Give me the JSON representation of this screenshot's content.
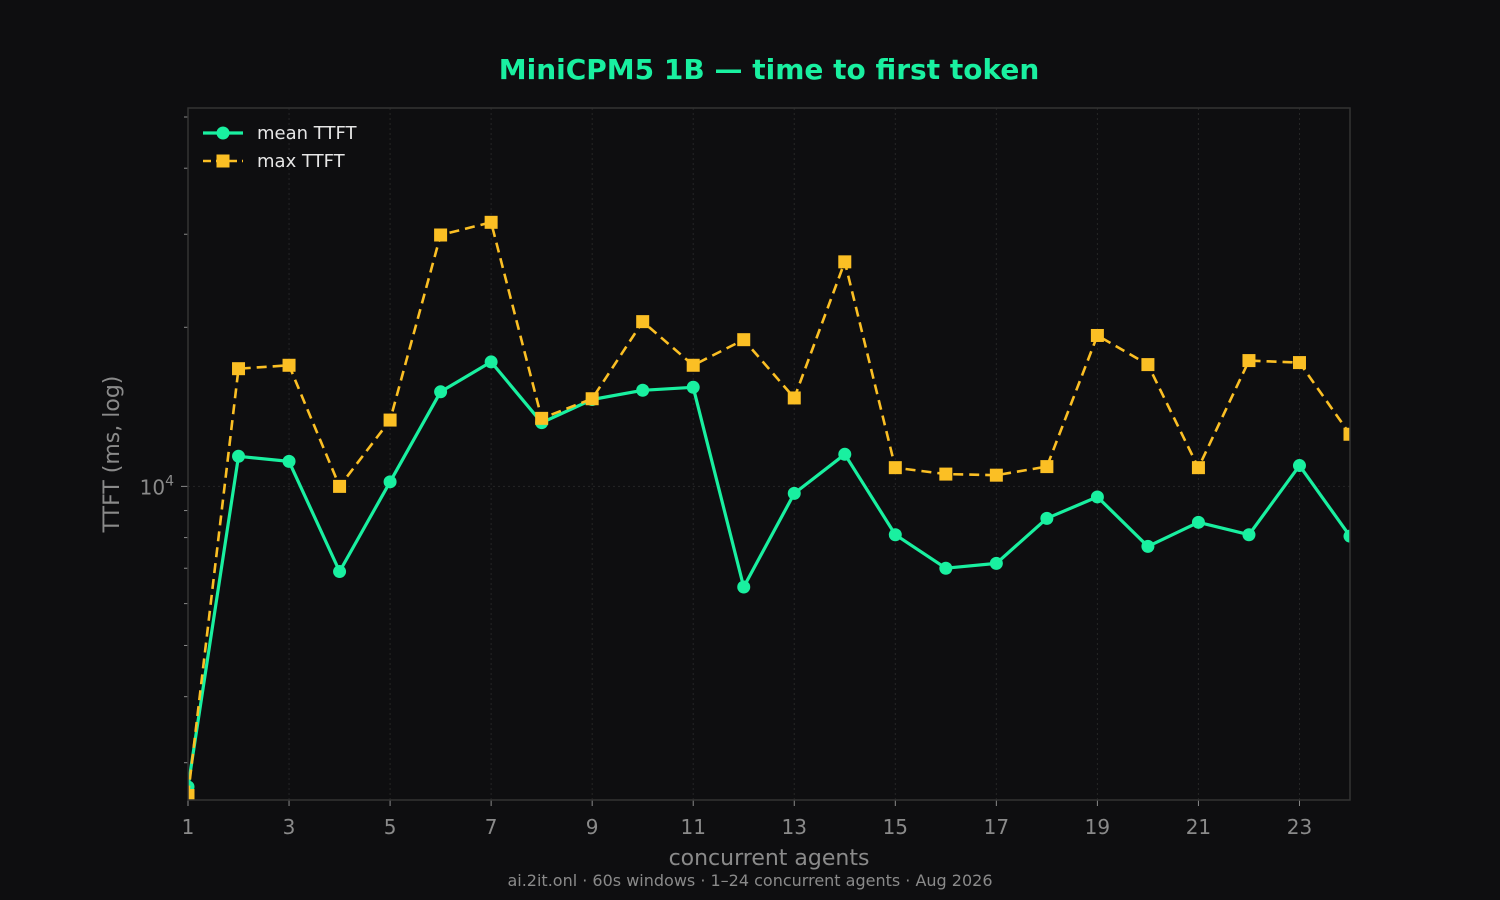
{
  "colors": {
    "background": "#0e0e10",
    "title": "#19f0a0",
    "mean": "#19f0a0",
    "max": "#fbbf24",
    "frame": "#333333",
    "grid": "#262626",
    "text": "#8a8a8a",
    "legend_text": "#e6e6e6"
  },
  "footer": "ai.2it.onl · 60s windows · 1–24 concurrent agents · Aug 2026",
  "chart_data": {
    "type": "line",
    "title": "MiniCPM5 1B — time to first token",
    "xlabel": "concurrent agents",
    "ylabel": "TTFT (ms, log)",
    "yscale": "log",
    "xlim": [
      1,
      24
    ],
    "ylim": [
      2550,
      52000
    ],
    "x_ticks": [
      1,
      3,
      5,
      7,
      9,
      11,
      13,
      15,
      17,
      19,
      21,
      23
    ],
    "y_major_ticks": [
      {
        "value": 10000,
        "base": "10",
        "exp": "4"
      }
    ],
    "grid": true,
    "legend": "top-left",
    "x": [
      1,
      2,
      3,
      4,
      5,
      6,
      7,
      8,
      9,
      10,
      11,
      12,
      13,
      14,
      15,
      16,
      17,
      18,
      19,
      20,
      21,
      22,
      23,
      24
    ],
    "series": [
      {
        "name": "mean TTFT",
        "marker": "circle",
        "linestyle": "solid",
        "values": [
          2700,
          11400,
          11150,
          6900,
          10200,
          15100,
          17200,
          13200,
          14600,
          15200,
          15400,
          6450,
          9700,
          11500,
          8100,
          7000,
          7150,
          8700,
          9550,
          7700,
          8550,
          8100,
          10950,
          8050
        ]
      },
      {
        "name": "max TTFT",
        "marker": "square",
        "linestyle": "dashed",
        "values": [
          2600,
          16700,
          16950,
          10000,
          13350,
          29900,
          31600,
          13450,
          14650,
          20500,
          16950,
          18950,
          14700,
          26600,
          10850,
          10550,
          10500,
          10900,
          19300,
          17000,
          10850,
          17300,
          17150,
          12550
        ]
      }
    ]
  }
}
